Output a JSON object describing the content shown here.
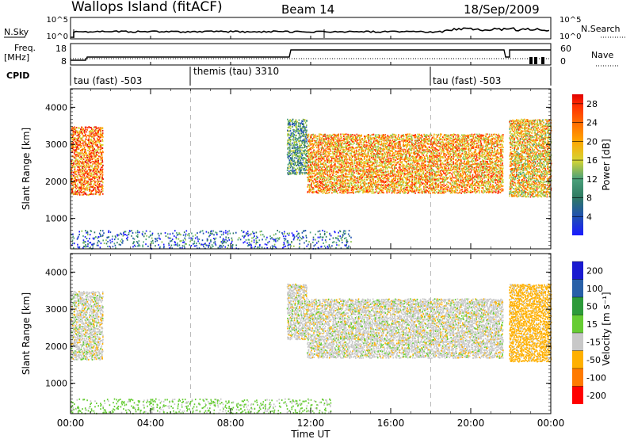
{
  "header": {
    "station": "Wallops Island (fitACF)",
    "beam": "Beam 14",
    "date": "18/Sep/2009"
  },
  "noise_panel": {
    "left_label": "N.Sky",
    "right_label": "N.Search",
    "left_ticks": [
      "10^5",
      "10^0"
    ],
    "right_ticks": [
      "10^5",
      "10^0"
    ]
  },
  "freq_panel": {
    "left_label_1": "Freq.",
    "left_label_2": "[MHz]",
    "right_label": "Nave",
    "left_ticks": [
      "18",
      "8"
    ],
    "right_ticks": [
      "60",
      "0"
    ]
  },
  "cpid": {
    "label": "CPID",
    "segments": [
      {
        "name": "tau (fast) -503",
        "start_hour": 0
      },
      {
        "name": "themis (tau) 3310",
        "start_hour": 6
      },
      {
        "name": "tau (fast) -503",
        "start_hour": 18
      }
    ]
  },
  "colors": {
    "power": [
      "#1a1aff",
      "#1f4fb4",
      "#2f7a62",
      "#4aa07a",
      "#8bc34a",
      "#d4d435",
      "#ffa500",
      "#ff6a00",
      "#ff2a00",
      "#e00000"
    ],
    "velocity": [
      "#ff0000",
      "#ff7a00",
      "#ffb000",
      "#c8c8c8",
      "#66cc33",
      "#2d9a3a",
      "#2860a8",
      "#1a1ad0"
    ]
  },
  "chart_data": [
    {
      "type": "heatmap",
      "title": "Power",
      "ylabel": "Slant Range [km]",
      "xlabel": "",
      "xlim": [
        0,
        24
      ],
      "ylim": [
        180,
        4500
      ],
      "yticks": [
        1000,
        2000,
        3000,
        4000
      ],
      "colorbar_label": "Power [dB]",
      "colorbar_ticks": [
        4,
        8,
        12,
        16,
        20,
        24,
        28
      ],
      "colorbar_range": [
        0,
        30
      ],
      "regions": [
        {
          "t0": 0.0,
          "t1": 1.6,
          "r0": 1650,
          "r1": 3500,
          "level": 22
        },
        {
          "t0": 10.8,
          "t1": 11.8,
          "r0": 2200,
          "r1": 3700,
          "level": 10
        },
        {
          "t0": 11.8,
          "t1": 21.6,
          "r0": 1700,
          "r1": 3300,
          "level": 20
        },
        {
          "t0": 21.9,
          "t1": 24.0,
          "r0": 1600,
          "r1": 3700,
          "level": 18
        },
        {
          "t0": 0.0,
          "t1": 14.0,
          "r0": 200,
          "r1": 700,
          "level": 6
        }
      ]
    },
    {
      "type": "heatmap",
      "title": "Velocity",
      "ylabel": "Slant Range [km]",
      "xlabel": "Time UT",
      "xlim": [
        0,
        24
      ],
      "ylim": [
        180,
        4500
      ],
      "xticks": [
        "00:00",
        "04:00",
        "08:00",
        "12:00",
        "16:00",
        "20:00",
        "00:00"
      ],
      "yticks": [
        1000,
        2000,
        3000,
        4000
      ],
      "colorbar_label": "Velocity [m s⁻¹]",
      "colorbar_ticks": [
        -200,
        -100,
        -50,
        -15,
        15,
        50,
        100,
        200
      ],
      "regions": [
        {
          "t0": 0.0,
          "t1": 1.6,
          "r0": 1650,
          "r1": 3500,
          "level": 0
        },
        {
          "t0": 10.8,
          "t1": 11.8,
          "r0": 2200,
          "r1": 3700,
          "level": 0
        },
        {
          "t0": 11.8,
          "t1": 21.6,
          "r0": 1700,
          "r1": 3300,
          "level": 0
        },
        {
          "t0": 21.9,
          "t1": 24.0,
          "r0": 1600,
          "r1": 3700,
          "level": -30
        },
        {
          "t0": 0.0,
          "t1": 13.0,
          "r0": 200,
          "r1": 600,
          "level": 25
        }
      ]
    }
  ]
}
